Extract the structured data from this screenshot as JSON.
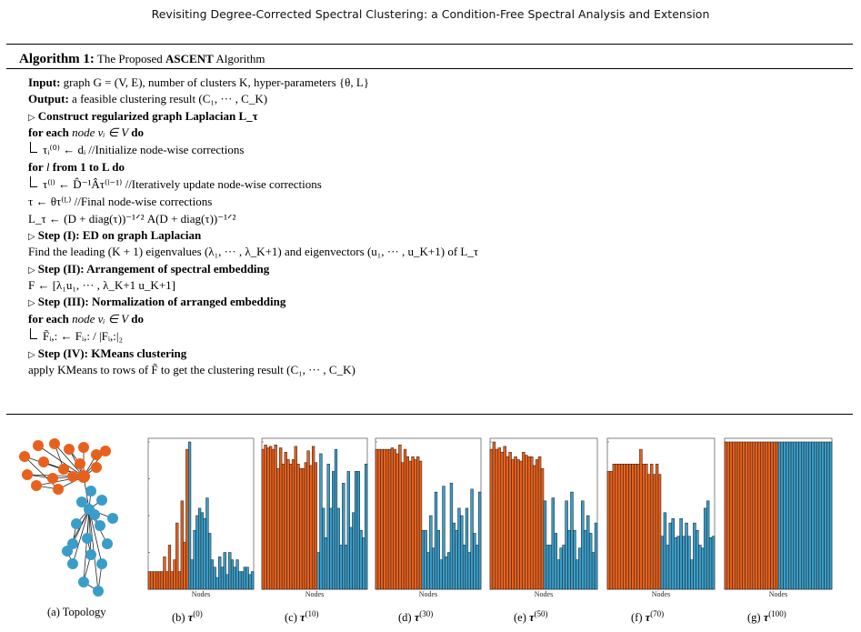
{
  "header": {
    "title": "Revisiting Degree-Corrected Spectral Clustering: a Condition-Free Spectral Analysis and Extension"
  },
  "algorithm": {
    "label": "Algorithm 1:",
    "name_prefix": "The Proposed ",
    "name_bold": "ASCENT",
    "name_suffix": " Algorithm",
    "lines": [
      {
        "type": "kw",
        "kw": "Input:",
        "text": " graph G = (V, E), number of clusters K, hyper-parameters {θ, L}"
      },
      {
        "type": "kw",
        "kw": "Output:",
        "text": " a feasible clustering result (C₁, ··· , C_K)"
      },
      {
        "type": "step",
        "text": "Construct regularized graph Laplacian L_τ"
      },
      {
        "type": "loop",
        "kw": "for each",
        "mid": " node vᵢ ∈ V ",
        "kw2": "do"
      },
      {
        "type": "body",
        "text": "τᵢ⁽⁰⁾ ← dᵢ //Initialize node-wise corrections"
      },
      {
        "type": "loop",
        "kw": "for",
        "mid": " l ",
        "kw2": "from 1 to L do"
      },
      {
        "type": "body",
        "text": "τ⁽ˡ⁾ ← D̂⁻¹Âτ⁽ˡ⁻¹⁾ //Iteratively update node-wise corrections"
      },
      {
        "type": "plain",
        "text": "τ ← θτ⁽ᴸ⁾ //Final node-wise corrections"
      },
      {
        "type": "plain",
        "text": "L_τ ← (D + diag(τ))⁻¹ᐟ² A(D + diag(τ))⁻¹ᐟ²"
      },
      {
        "type": "stepk",
        "kw": "Step (I)",
        "text": ": ED on graph Laplacian"
      },
      {
        "type": "plain",
        "text": "Find the leading (K + 1) eigenvalues (λ₁, ··· , λ_K+1) and eigenvectors (u₁, ··· , u_K+1) of L_τ"
      },
      {
        "type": "stepk",
        "kw": "Step (II)",
        "text": ": Arrangement of spectral embedding"
      },
      {
        "type": "plain",
        "text": "F ← [λ₁u₁, ··· , λ_K+1 u_K+1]"
      },
      {
        "type": "stepk",
        "kw": "Step (III)",
        "text": ": Normalization of arranged embedding"
      },
      {
        "type": "loop",
        "kw": "for each",
        "mid": " node vᵢ ∈ V ",
        "kw2": "do"
      },
      {
        "type": "body",
        "text": "F̃ᵢ,: ← Fᵢ,: / |Fᵢ,:|₂"
      },
      {
        "type": "stepk",
        "kw": "Step (IV)",
        "text": ": KMeans clustering"
      },
      {
        "type": "plain",
        "text": "apply KMeans to rows of F̃ to get the clustering result (C₁, ··· , C_K)"
      }
    ]
  },
  "figure": {
    "colors": {
      "orange": "#e8611c",
      "blue": "#3a9dc9",
      "edge": "#222222"
    },
    "axis_label": "Nodes",
    "captions": [
      {
        "id": "a",
        "text": "(a) Topology"
      },
      {
        "id": "b",
        "prefix": "(b) ",
        "sym": "τ",
        "sup": "(0)"
      },
      {
        "id": "c",
        "prefix": "(c) ",
        "sym": "τ",
        "sup": "(10)"
      },
      {
        "id": "d",
        "prefix": "(d) ",
        "sym": "τ",
        "sup": "(30)"
      },
      {
        "id": "e",
        "prefix": "(e) ",
        "sym": "τ",
        "sup": "(50)"
      },
      {
        "id": "f",
        "prefix": "(f) ",
        "sym": "τ",
        "sup": "(70)"
      },
      {
        "id": "g",
        "prefix": "(g) ",
        "sym": "τ",
        "sup": "(100)"
      }
    ]
  },
  "chart_data": [
    {
      "type": "bar",
      "panel": "b",
      "xlabel": "Nodes",
      "split": 16,
      "values": [
        0.12,
        0.12,
        0.12,
        0.12,
        0.12,
        0.12,
        0.22,
        0.12,
        0.3,
        0.12,
        0.2,
        0.45,
        0.12,
        0.6,
        0.32,
        0.95,
        1.0,
        0.2,
        0.4,
        0.5,
        0.55,
        0.52,
        0.48,
        0.62,
        0.38,
        0.2,
        0.15,
        0.08,
        0.22,
        0.15,
        0.25,
        0.1,
        0.25,
        0.2,
        0.15,
        0.2,
        0.12,
        0.12,
        0.15,
        0.15,
        0.1,
        0.12
      ]
    },
    {
      "type": "bar",
      "panel": "c",
      "xlabel": "Nodes",
      "split": 22,
      "values": [
        0.95,
        0.98,
        0.96,
        0.97,
        0.95,
        0.98,
        0.82,
        0.96,
        0.85,
        0.93,
        0.88,
        0.85,
        0.88,
        0.97,
        0.85,
        0.82,
        0.82,
        0.86,
        0.94,
        0.84,
        0.97,
        0.86,
        0.25,
        0.92,
        0.55,
        0.35,
        0.85,
        0.55,
        0.8,
        0.95,
        0.55,
        0.3,
        0.72,
        0.3,
        0.8,
        0.42,
        0.52,
        0.8,
        0.8,
        0.4,
        0.35,
        0.85
      ]
    },
    {
      "type": "bar",
      "panel": "d",
      "xlabel": "Nodes",
      "split": 18,
      "values": [
        0.95,
        0.95,
        0.95,
        0.95,
        0.95,
        0.95,
        0.96,
        0.95,
        0.92,
        0.98,
        0.86,
        0.95,
        0.9,
        0.87,
        0.9,
        0.88,
        0.9,
        0.87,
        0.4,
        0.4,
        0.25,
        0.5,
        0.28,
        0.66,
        0.4,
        0.2,
        0.7,
        0.22,
        0.25,
        0.72,
        0.45,
        0.4,
        0.55,
        0.5,
        0.3,
        0.55,
        0.25,
        0.68,
        0.38,
        0.3,
        0.66
      ]
    },
    {
      "type": "bar",
      "panel": "e",
      "xlabel": "Nodes",
      "split": 20,
      "values": [
        0.95,
        1.0,
        0.95,
        0.96,
        0.93,
        0.97,
        0.9,
        0.93,
        0.88,
        0.9,
        0.88,
        0.87,
        0.93,
        0.91,
        0.9,
        0.9,
        0.84,
        0.88,
        0.9,
        0.82,
        0.6,
        0.3,
        0.3,
        0.62,
        0.38,
        0.2,
        0.28,
        0.3,
        0.6,
        0.4,
        0.66,
        0.4,
        0.2,
        0.28,
        0.6,
        0.4,
        0.5,
        0.38,
        0.25,
        0.45
      ]
    },
    {
      "type": "bar",
      "panel": "f",
      "xlabel": "Nodes",
      "split": 20,
      "values": [
        0.8,
        0.8,
        0.85,
        0.85,
        0.85,
        0.85,
        0.85,
        0.85,
        0.85,
        0.85,
        0.85,
        0.85,
        0.95,
        0.85,
        0.85,
        0.78,
        0.85,
        0.78,
        0.85,
        0.78,
        0.36,
        0.52,
        0.3,
        0.45,
        0.48,
        0.35,
        0.36,
        0.48,
        0.36,
        0.45,
        0.36,
        0.2,
        0.45,
        0.4,
        0.3,
        0.28,
        0.55,
        0.6,
        0.35,
        0.36
      ]
    },
    {
      "type": "bar",
      "panel": "g",
      "xlabel": "Nodes",
      "split": 21,
      "values": [
        1,
        1,
        1,
        1,
        1,
        1,
        1,
        1,
        1,
        1,
        1,
        1,
        1,
        1,
        1,
        1,
        1,
        1,
        1,
        1,
        1,
        1,
        1,
        1,
        1,
        1,
        1,
        1,
        1,
        1,
        1,
        1,
        1,
        1,
        1,
        1,
        1,
        1,
        1,
        1,
        1,
        1
      ]
    }
  ]
}
